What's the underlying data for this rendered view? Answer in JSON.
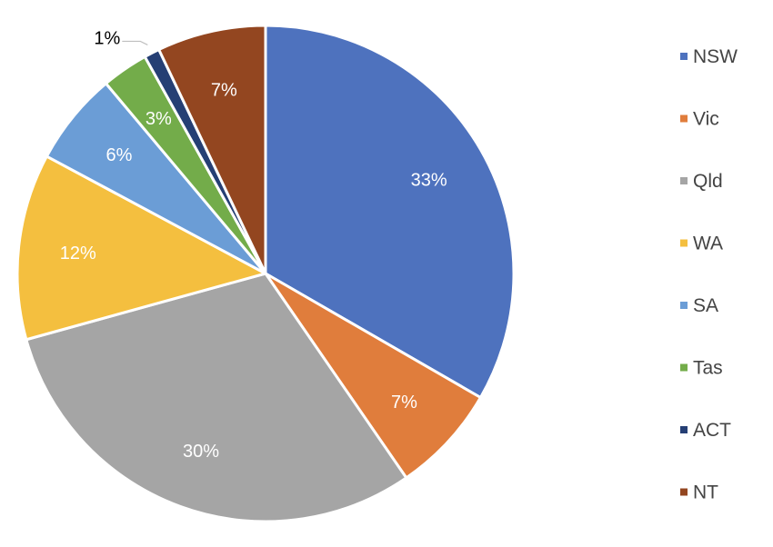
{
  "chart_data": {
    "type": "pie",
    "title": "",
    "categories": [
      "NSW",
      "Vic",
      "Qld",
      "WA",
      "SA",
      "Tas",
      "ACT",
      "NT"
    ],
    "values": [
      33,
      7,
      30,
      12,
      6,
      3,
      1,
      7
    ],
    "data_labels": [
      "33%",
      "7%",
      "30%",
      "12%",
      "6%",
      "3%",
      "1%",
      "7%"
    ],
    "colors": [
      "#4e72be",
      "#e07d3c",
      "#a5a5a5",
      "#f4bf3f",
      "#6b9dd6",
      "#73ac4a",
      "#253f74",
      "#934620"
    ],
    "label_colors": [
      "#ffffff",
      "#ffffff",
      "#ffffff",
      "#ffffff",
      "#ffffff",
      "#ffffff",
      "#000000",
      "#ffffff"
    ],
    "legend_position": "right",
    "start_angle": "12 o'clock, clockwise"
  }
}
